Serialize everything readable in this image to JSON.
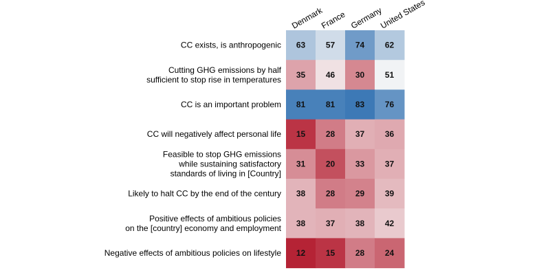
{
  "chart_data": {
    "type": "heatmap",
    "title": "",
    "xlabel": "",
    "ylabel": "",
    "columns": [
      "Denmark",
      "France",
      "Germany",
      "United States"
    ],
    "rows": [
      {
        "label": [
          "CC exists, is anthropogenic"
        ],
        "values": [
          63,
          57,
          74,
          62
        ]
      },
      {
        "label": [
          "Cutting GHG emissions by half",
          "sufficient to stop rise in temperatures"
        ],
        "values": [
          35,
          46,
          30,
          51
        ]
      },
      {
        "label": [
          "CC is an important problem"
        ],
        "values": [
          81,
          81,
          83,
          76
        ]
      },
      {
        "label": [
          "CC will negatively affect personal life"
        ],
        "values": [
          15,
          28,
          37,
          36
        ]
      },
      {
        "label": [
          "Feasible to stop GHG emissions",
          "while sustaining satisfactory",
          "standards of living in [Country]"
        ],
        "values": [
          31,
          20,
          33,
          37
        ]
      },
      {
        "label": [
          "Likely to halt CC by the end of the century"
        ],
        "values": [
          38,
          28,
          29,
          39
        ]
      },
      {
        "label": [
          "Positive effects of ambitious policies",
          "on the [country] economy and employment"
        ],
        "values": [
          38,
          37,
          38,
          42
        ]
      },
      {
        "label": [
          "Negative effects of ambitious policies on lifestyle"
        ],
        "values": [
          12,
          15,
          28,
          24
        ]
      }
    ],
    "color_scale": {
      "name": "diverging red-blue",
      "midpoint": 50,
      "low_color": "#b2182b",
      "mid_color": "#f7f7f7",
      "high_color": "#2166ac"
    },
    "legend": "none",
    "grid": false
  }
}
